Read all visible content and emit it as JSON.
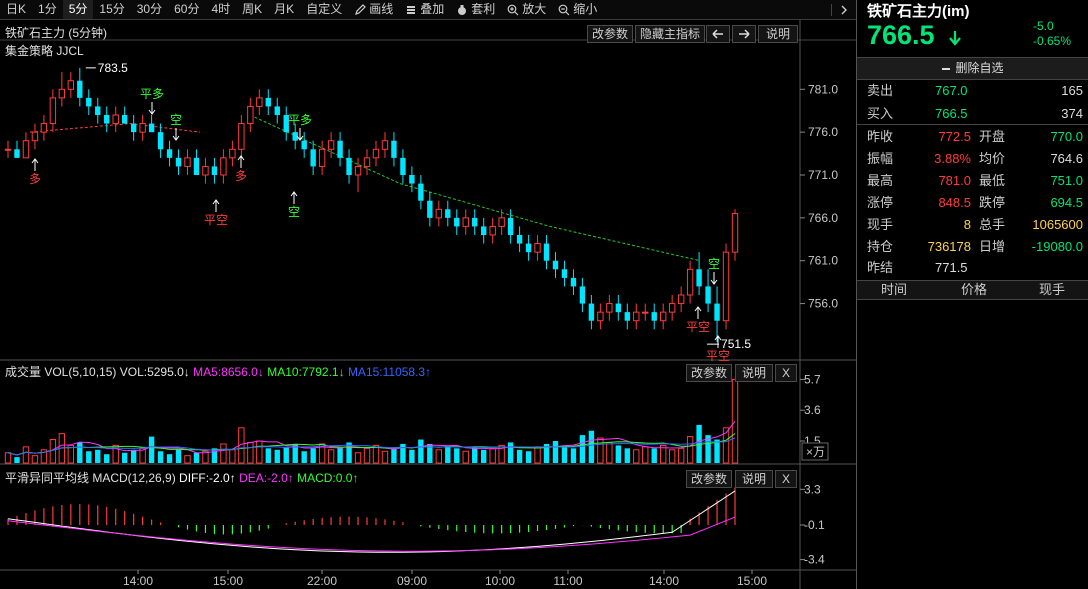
{
  "toolbar": {
    "items": [
      "日K",
      "1分",
      "5分",
      "15分",
      "30分",
      "60分",
      "4时",
      "周K",
      "月K",
      "自定义"
    ],
    "active_index": 2,
    "draw_label": "画线",
    "overlay_label": "叠加",
    "arbitrage_label": "套利",
    "zoom_in_label": "放大",
    "zoom_out_label": "缩小"
  },
  "main": {
    "title": "铁矿石主力 (5分钟)",
    "strategy": "集金策略  JJCL",
    "btn_params": "改参数",
    "btn_hide": "隐藏主指标",
    "btn_help": "说明",
    "high_label": "783.5",
    "low_label": "751.5",
    "y_ticks": [
      "781.0",
      "776.0",
      "771.0",
      "766.0",
      "761.0",
      "756.0"
    ],
    "signals": [
      "多",
      "平多",
      "空",
      "平空",
      "多",
      "平多",
      "空",
      "空",
      "平空",
      "平空"
    ]
  },
  "volume": {
    "title": "成交量 VOL(5,10,15)",
    "vol_value": "VOL:5295.0↓",
    "ma5": "MA5:8656.0↓",
    "ma10": "MA10:7792.1↓",
    "ma15": "MA15:11058.3↑",
    "btn_params": "改参数",
    "btn_help": "说明",
    "btn_close": "X",
    "y_ticks": [
      "5.7",
      "3.6",
      "1.5"
    ],
    "unit": "×万"
  },
  "macd": {
    "title": "平滑异同平均线 MACD(12,26,9)",
    "diff": "DIFF:-2.0↑",
    "dea": "DEA:-2.0↑",
    "macd": "MACD:0.0↑",
    "btn_params": "改参数",
    "btn_help": "说明",
    "btn_close": "X",
    "y_ticks": [
      "3.3",
      "-0.1",
      "-3.4"
    ]
  },
  "x_axis": [
    "14:00",
    "15:00",
    "22:00",
    "09:00",
    "10:00",
    "11:00",
    "14:00",
    "15:00"
  ],
  "quote": {
    "name": "铁矿石主力(im)",
    "price": "766.5",
    "change": "-5.0",
    "change_pct": "-0.65%",
    "remove_watch": "删除自选",
    "sell_label": "卖出",
    "sell_price": "767.0",
    "sell_qty": "165",
    "buy_label": "买入",
    "buy_price": "766.5",
    "buy_qty": "374",
    "rows": [
      {
        "l1": "昨收",
        "v1": "772.5",
        "c1": "#ff3b3b",
        "l2": "开盘",
        "v2": "770.0",
        "c2": "#00e676"
      },
      {
        "l1": "振幅",
        "v1": "3.88%",
        "c1": "#ff3b3b",
        "l2": "均价",
        "v2": "764.6",
        "c2": "#dddddd"
      },
      {
        "l1": "最高",
        "v1": "781.0",
        "c1": "#ff3b3b",
        "l2": "最低",
        "v2": "751.0",
        "c2": "#00e676"
      },
      {
        "l1": "涨停",
        "v1": "848.5",
        "c1": "#ff3b3b",
        "l2": "跌停",
        "v2": "694.5",
        "c2": "#00e676"
      },
      {
        "l1": "现手",
        "v1": "8",
        "c1": "#ffd24a",
        "l2": "总手",
        "v2": "1065600",
        "c2": "#ffd24a"
      },
      {
        "l1": "持仓",
        "v1": "736178",
        "c1": "#ffd24a",
        "l2": "日增",
        "v2": "-19080.0",
        "c2": "#00e676"
      }
    ],
    "prev_settle_label": "昨结",
    "prev_settle": "771.5",
    "trade_headers": [
      "时间",
      "价格",
      "现手"
    ]
  },
  "colors": {
    "up": "#ff3b3b",
    "down": "#00e5ff",
    "ma_line": "#ff4040",
    "trend_line": "#22cc22",
    "diff": "#ffffff",
    "dea": "#ff33ff"
  },
  "chart_data": {
    "type": "candlestick",
    "title": "铁矿石主力 (5分钟)",
    "ylim": [
      750,
      785
    ],
    "candles": [
      [
        774,
        775,
        773,
        774
      ],
      [
        774,
        775,
        773,
        773
      ],
      [
        773,
        776,
        773,
        775
      ],
      [
        775,
        777,
        774,
        776
      ],
      [
        776,
        778,
        775,
        777
      ],
      [
        777,
        781,
        776,
        780
      ],
      [
        780,
        783,
        779,
        781
      ],
      [
        781,
        783,
        780,
        782
      ],
      [
        782,
        783.5,
        779,
        780
      ],
      [
        780,
        781,
        778,
        779
      ],
      [
        779,
        780,
        777,
        778
      ],
      [
        778,
        779,
        776,
        777
      ],
      [
        777,
        779,
        776,
        778
      ],
      [
        778,
        779,
        777,
        777
      ],
      [
        777,
        778,
        775,
        776
      ],
      [
        776,
        778,
        775,
        777
      ],
      [
        777,
        778,
        776,
        776
      ],
      [
        776,
        777,
        773,
        774
      ],
      [
        774,
        775,
        772,
        773
      ],
      [
        773,
        774,
        771,
        772
      ],
      [
        772,
        774,
        771,
        773
      ],
      [
        773,
        774,
        771,
        771
      ],
      [
        771,
        773,
        770,
        772
      ],
      [
        772,
        773,
        770,
        771
      ],
      [
        771,
        774,
        770,
        773
      ],
      [
        773,
        775,
        772,
        774
      ],
      [
        774,
        778,
        773,
        777
      ],
      [
        777,
        780,
        776,
        779
      ],
      [
        779,
        781,
        778,
        780
      ],
      [
        780,
        781,
        778,
        779
      ],
      [
        779,
        780,
        777,
        778
      ],
      [
        778,
        779,
        775,
        776
      ],
      [
        776,
        777,
        774,
        775
      ],
      [
        775,
        776,
        773,
        774
      ],
      [
        774,
        775,
        771,
        772
      ],
      [
        772,
        775,
        771,
        774
      ],
      [
        774,
        776,
        773,
        775
      ],
      [
        775,
        776,
        772,
        773
      ],
      [
        773,
        774,
        770,
        771
      ],
      [
        771,
        773,
        769,
        772
      ],
      [
        772,
        774,
        771,
        773
      ],
      [
        773,
        775,
        772,
        774
      ],
      [
        774,
        776,
        773,
        775
      ],
      [
        775,
        776,
        772,
        773
      ],
      [
        773,
        774,
        770,
        771
      ],
      [
        771,
        772,
        769,
        770
      ],
      [
        770,
        771,
        767,
        768
      ],
      [
        768,
        769,
        765,
        766
      ],
      [
        766,
        768,
        765,
        767
      ],
      [
        767,
        768,
        765,
        766
      ],
      [
        766,
        767,
        764,
        765
      ],
      [
        765,
        767,
        764,
        766
      ],
      [
        766,
        767,
        764,
        765
      ],
      [
        765,
        766,
        763,
        764
      ],
      [
        764,
        766,
        763,
        765
      ],
      [
        765,
        767,
        764,
        766
      ],
      [
        766,
        767,
        763,
        764
      ],
      [
        764,
        765,
        762,
        763
      ],
      [
        763,
        764,
        761,
        762
      ],
      [
        762,
        764,
        761,
        763
      ],
      [
        763,
        764,
        760,
        761
      ],
      [
        761,
        762,
        759,
        760
      ],
      [
        760,
        761,
        758,
        759
      ],
      [
        759,
        760,
        757,
        758
      ],
      [
        758,
        759,
        755,
        756
      ],
      [
        756,
        757,
        753,
        754
      ],
      [
        754,
        756,
        753,
        755
      ],
      [
        755,
        757,
        754,
        756
      ],
      [
        756,
        757,
        754,
        755
      ],
      [
        755,
        756,
        753,
        754
      ],
      [
        754,
        756,
        753,
        755
      ],
      [
        755,
        756,
        754,
        755
      ],
      [
        755,
        756,
        753,
        754
      ],
      [
        754,
        756,
        753,
        755
      ],
      [
        755,
        757,
        754,
        756
      ],
      [
        756,
        758,
        755,
        757
      ],
      [
        757,
        761,
        756,
        760
      ],
      [
        760,
        762,
        757,
        758
      ],
      [
        758,
        760,
        755,
        756
      ],
      [
        756,
        758,
        751.5,
        754
      ],
      [
        754,
        763,
        753,
        762
      ],
      [
        762,
        767,
        761,
        766.5
      ]
    ],
    "x_ticks": [
      "14:00",
      "15:00",
      "22:00",
      "09:00",
      "10:00",
      "11:00",
      "14:00",
      "15:00"
    ]
  }
}
